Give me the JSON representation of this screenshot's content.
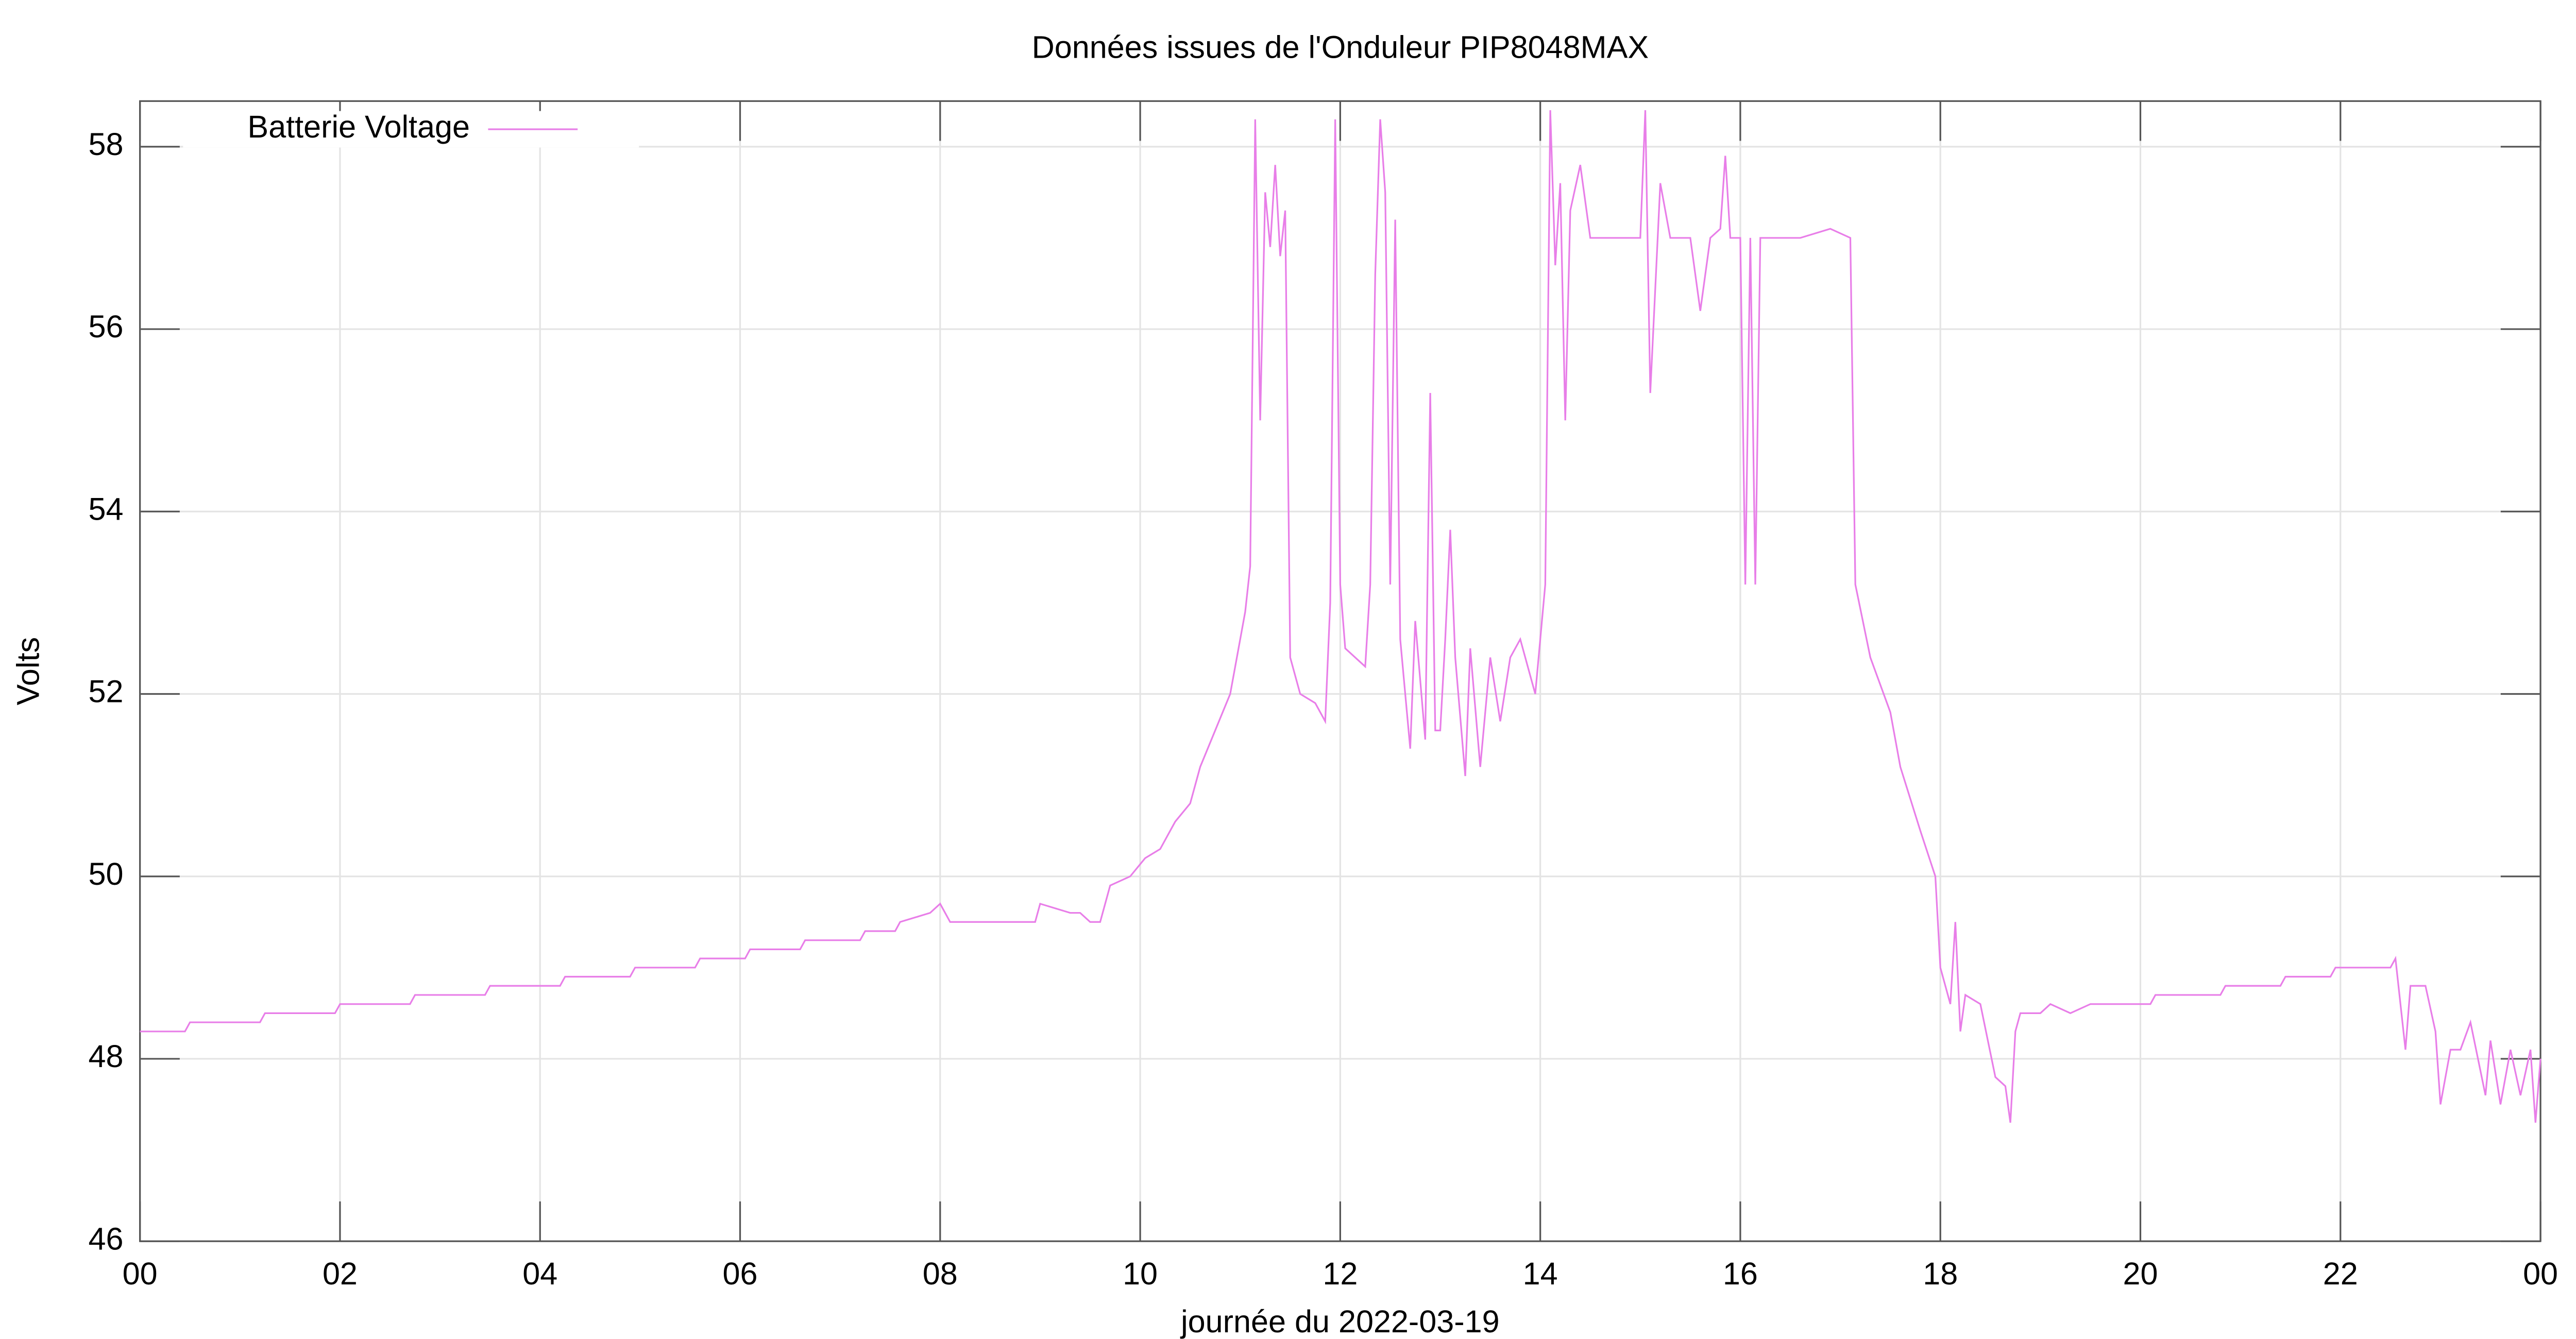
{
  "chart_data": {
    "type": "line",
    "title": "Données issues de l'Onduleur PIP8048MAX",
    "xlabel": "journée du 2022-03-19",
    "ylabel": "Volts",
    "xlim": [
      0,
      24
    ],
    "ylim": [
      46,
      58.5
    ],
    "xticks": [
      {
        "value": 0,
        "label": "00"
      },
      {
        "value": 2,
        "label": "02"
      },
      {
        "value": 4,
        "label": "04"
      },
      {
        "value": 6,
        "label": "06"
      },
      {
        "value": 8,
        "label": "08"
      },
      10,
      12,
      14,
      16,
      18,
      20,
      22,
      {
        "value": 24,
        "label": "00"
      }
    ],
    "yticks": [
      46,
      48,
      50,
      52,
      54,
      56,
      58
    ],
    "grid": true,
    "legend": "upper left",
    "x": [
      0,
      0.45,
      0.5,
      1.2,
      1.25,
      1.95,
      2.0,
      2.7,
      2.75,
      3.45,
      3.5,
      4.2,
      4.25,
      4.9,
      4.95,
      5.55,
      5.6,
      6.05,
      6.1,
      6.6,
      6.65,
      7.2,
      7.25,
      7.55,
      7.6,
      7.9,
      8.0,
      8.05,
      8.1,
      8.95,
      9.0,
      9.3,
      9.4,
      9.5,
      9.6,
      9.7,
      9.9,
      10.05,
      10.2,
      10.35,
      10.5,
      10.6,
      10.75,
      10.9,
      11.0,
      11.05,
      11.1,
      11.15,
      11.2,
      11.25,
      11.3,
      11.35,
      11.4,
      11.45,
      11.5,
      11.6,
      11.75,
      11.85,
      11.9,
      11.95,
      12.0,
      12.05,
      12.15,
      12.25,
      12.3,
      12.35,
      12.4,
      12.45,
      12.5,
      12.55,
      12.6,
      12.7,
      12.75,
      12.85,
      12.9,
      12.95,
      13.0,
      13.05,
      13.1,
      13.15,
      13.25,
      13.3,
      13.4,
      13.5,
      13.6,
      13.7,
      13.8,
      13.95,
      14.05,
      14.1,
      14.15,
      14.2,
      14.25,
      14.3,
      14.4,
      14.5,
      15.0,
      15.05,
      15.1,
      15.2,
      15.3,
      15.5,
      15.6,
      15.7,
      15.8,
      15.85,
      15.9,
      16.0,
      16.05,
      16.1,
      16.15,
      16.2,
      16.6,
      16.9,
      17.1,
      17.15,
      17.3,
      17.5,
      17.6,
      17.8,
      17.95,
      18.0,
      18.1,
      18.15,
      18.2,
      18.25,
      18.4,
      18.55,
      18.65,
      18.7,
      18.75,
      18.8,
      19.0,
      19.1,
      19.3,
      19.5,
      20.1,
      20.15,
      20.8,
      20.85,
      21.4,
      21.45,
      21.9,
      21.95,
      22.5,
      22.55,
      22.65,
      22.7,
      22.85,
      22.95,
      23.0,
      23.1,
      23.2,
      23.3,
      23.45,
      23.5,
      23.6,
      23.7,
      23.8,
      23.9,
      23.95,
      24
    ],
    "series": [
      {
        "name": "Batterie Voltage",
        "color": "#e87ee8",
        "values": [
          48.3,
          48.3,
          48.4,
          48.4,
          48.5,
          48.5,
          48.6,
          48.6,
          48.7,
          48.7,
          48.8,
          48.8,
          48.9,
          48.9,
          49.0,
          49.0,
          49.1,
          49.1,
          49.2,
          49.2,
          49.3,
          49.3,
          49.4,
          49.4,
          49.5,
          49.6,
          49.7,
          49.6,
          49.5,
          49.5,
          49.7,
          49.6,
          49.6,
          49.5,
          49.5,
          49.9,
          50.0,
          50.2,
          50.3,
          50.6,
          50.8,
          51.2,
          51.6,
          52.0,
          52.6,
          52.9,
          53.4,
          58.3,
          55.0,
          57.5,
          56.9,
          57.8,
          56.8,
          57.3,
          52.4,
          52.0,
          51.9,
          51.7,
          53.0,
          58.3,
          53.2,
          52.5,
          52.4,
          52.3,
          53.2,
          56.6,
          58.3,
          57.5,
          53.2,
          57.2,
          52.6,
          51.4,
          52.8,
          51.5,
          55.3,
          51.6,
          51.6,
          52.6,
          53.8,
          52.4,
          51.1,
          52.5,
          51.2,
          52.4,
          51.7,
          52.4,
          52.6,
          52.0,
          53.2,
          58.4,
          56.7,
          57.6,
          55.0,
          57.3,
          57.8,
          57.0,
          57.0,
          58.4,
          55.3,
          57.6,
          57.0,
          57.0,
          56.2,
          57.0,
          57.1,
          57.9,
          57.0,
          57.0,
          53.2,
          57.0,
          53.2,
          57.0,
          57.0,
          57.1,
          57.0,
          53.2,
          52.4,
          51.8,
          51.2,
          50.5,
          50.0,
          49.0,
          48.6,
          49.5,
          48.3,
          48.7,
          48.6,
          47.8,
          47.7,
          47.3,
          48.3,
          48.5,
          48.5,
          48.6,
          48.5,
          48.6,
          48.6,
          48.7,
          48.7,
          48.8,
          48.8,
          48.9,
          48.9,
          49.0,
          49.0,
          49.1,
          48.1,
          48.8,
          48.8,
          48.3,
          47.5,
          48.1,
          48.1,
          48.4,
          47.6,
          48.2,
          47.5,
          48.1,
          47.6,
          48.1,
          47.3,
          48.0
        ]
      }
    ]
  }
}
